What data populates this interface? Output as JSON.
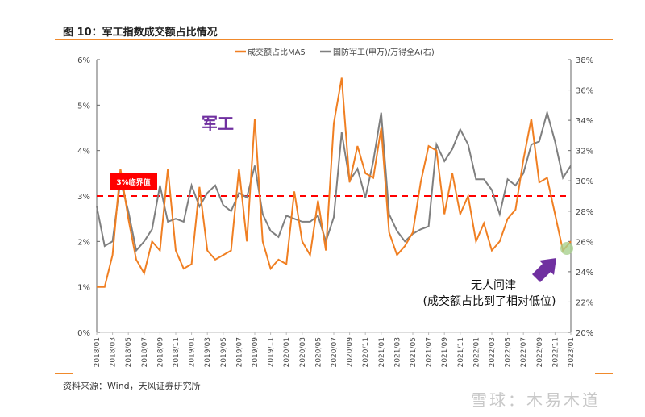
{
  "header": {
    "title": "图 10：军工指数成交额占比情况"
  },
  "footer": {
    "source": "资料来源：Wind，天风证券研究所",
    "watermark": "雪球：木易木道"
  },
  "colors": {
    "orange": "#f07f22",
    "gray": "#7f7f7f",
    "threshold": "#ff0000",
    "annotation": "#7030a0",
    "highlight": "#a9d18e"
  },
  "chart_data": {
    "type": "line",
    "title": "",
    "legend_position": "top-center",
    "grid": false,
    "x": [
      "2018/01",
      "2018/02",
      "2018/03",
      "2018/04",
      "2018/05",
      "2018/06",
      "2018/07",
      "2018/08",
      "2018/09",
      "2018/10",
      "2018/11",
      "2018/12",
      "2019/01",
      "2019/02",
      "2019/03",
      "2019/04",
      "2019/05",
      "2019/06",
      "2019/07",
      "2019/08",
      "2019/09",
      "2019/10",
      "2019/11",
      "2019/12",
      "2020/01",
      "2020/02",
      "2020/03",
      "2020/04",
      "2020/05",
      "2020/06",
      "2020/07",
      "2020/08",
      "2020/09",
      "2020/10",
      "2020/11",
      "2020/12",
      "2021/01",
      "2021/02",
      "2021/03",
      "2021/04",
      "2021/05",
      "2021/06",
      "2021/07",
      "2021/08",
      "2021/09",
      "2021/10",
      "2021/11",
      "2021/12",
      "2022/01",
      "2022/02",
      "2022/03",
      "2022/04",
      "2022/05",
      "2022/06",
      "2022/07",
      "2022/08",
      "2022/09",
      "2022/10",
      "2022/11",
      "2022/12",
      "2023/01"
    ],
    "x_tick_labels": [
      "2018/01",
      "2018/03",
      "2018/05",
      "2018/07",
      "2018/09",
      "2018/11",
      "2019/01",
      "2019/03",
      "2019/05",
      "2019/07",
      "2019/09",
      "2019/11",
      "2020/01",
      "2020/03",
      "2020/05",
      "2020/07",
      "2020/09",
      "2020/11",
      "2021/01",
      "2021/03",
      "2021/05",
      "2021/07",
      "2021/09",
      "2021/11",
      "2022/01",
      "2022/03",
      "2022/05",
      "2022/07",
      "2022/09",
      "2022/11",
      "2023/01"
    ],
    "y_left": {
      "range": [
        0,
        6
      ],
      "ticks": [
        "0%",
        "1%",
        "2%",
        "3%",
        "4%",
        "5%",
        "6%"
      ]
    },
    "y_right": {
      "range": [
        20,
        38
      ],
      "ticks": [
        "20%",
        "22%",
        "24%",
        "26%",
        "28%",
        "30%",
        "32%",
        "34%",
        "36%",
        "38%"
      ]
    },
    "series": [
      {
        "name": "成交额占比MA5",
        "axis": "left",
        "unit": "%",
        "values": [
          1.0,
          1.0,
          1.7,
          3.6,
          2.5,
          1.6,
          1.3,
          2.0,
          1.8,
          3.6,
          1.8,
          1.4,
          1.5,
          3.2,
          1.8,
          1.6,
          1.7,
          1.8,
          3.6,
          2.0,
          4.7,
          2.0,
          1.4,
          1.6,
          1.5,
          3.1,
          2.0,
          1.7,
          2.9,
          1.8,
          4.6,
          5.6,
          3.3,
          4.1,
          3.5,
          3.4,
          4.5,
          2.2,
          1.7,
          1.9,
          2.2,
          3.3,
          4.1,
          4.0,
          2.6,
          3.5,
          2.6,
          3.0,
          2.0,
          2.4,
          1.8,
          2.0,
          2.5,
          2.7,
          3.8,
          4.7,
          3.3,
          3.4,
          2.6,
          1.8,
          2.0
        ]
      },
      {
        "name": "国防军工(申万)/万得全A(右)",
        "axis": "right",
        "unit": "%",
        "values": [
          28.3,
          25.7,
          26.0,
          30.0,
          28.0,
          25.4,
          26.0,
          26.8,
          29.7,
          27.3,
          27.5,
          27.3,
          29.7,
          28.3,
          29.2,
          29.7,
          28.4,
          28.0,
          29.2,
          28.9,
          31.0,
          27.8,
          26.7,
          26.3,
          27.7,
          27.5,
          27.3,
          27.3,
          27.7,
          26.0,
          27.6,
          33.2,
          30.0,
          30.8,
          28.9,
          31.3,
          34.5,
          27.8,
          26.7,
          26.0,
          26.5,
          26.8,
          27.0,
          32.4,
          31.3,
          32.1,
          33.4,
          32.4,
          30.1,
          30.1,
          29.4,
          27.8,
          30.1,
          29.7,
          30.5,
          32.4,
          32.6,
          34.5,
          32.6,
          30.2,
          31.0
        ]
      }
    ],
    "threshold": {
      "value": 3,
      "label": "3%临界值"
    },
    "annotations": {
      "sector": "军工",
      "note_line1": "无人问津",
      "note_line2": "(成交额占比到了相对低位)"
    }
  }
}
